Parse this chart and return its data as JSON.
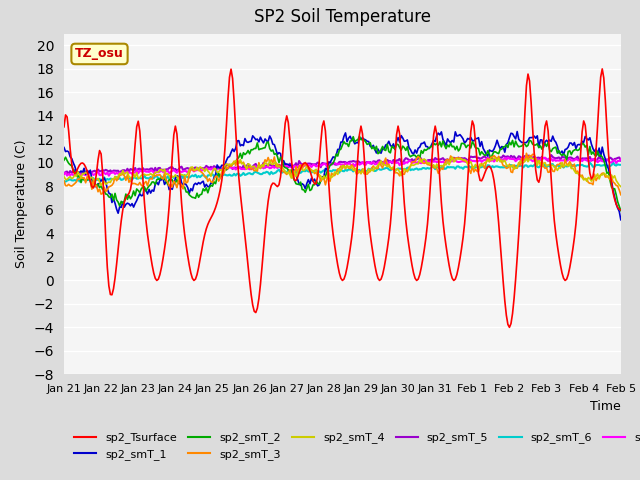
{
  "title": "SP2 Soil Temperature",
  "ylabel": "Soil Temperature (C)",
  "xlabel": "Time",
  "ylim": [
    -8,
    21
  ],
  "yticks": [
    -8,
    -6,
    -4,
    -2,
    0,
    2,
    4,
    6,
    8,
    10,
    12,
    14,
    16,
    18,
    20
  ],
  "tz_label": "TZ_osu",
  "tz_box_color": "#FFFFCC",
  "tz_text_color": "#CC0000",
  "bg_color": "#E8E8E8",
  "plot_bg_color": "#F0F0F0",
  "grid_color": "#FFFFFF",
  "series_colors": {
    "sp2_Tsurface": "#FF0000",
    "sp2_smT_1": "#0000CC",
    "sp2_smT_2": "#00AA00",
    "sp2_smT_3": "#FF8800",
    "sp2_smT_4": "#CCCC00",
    "sp2_smT_5": "#9900CC",
    "sp2_smT_6": "#00CCCC",
    "sp2_smT_7": "#FF00FF"
  },
  "x_tick_labels": [
    "Jan 21",
    "Jan 22",
    "Jan 23",
    "Jan 24",
    "Jan 25",
    "Jan 26",
    "Jan 27",
    "Jan 28",
    "Jan 29",
    "Jan 30",
    "Jan 31",
    "Feb 1",
    "Feb 2",
    "Feb 3",
    "Feb 4",
    "Feb 5"
  ],
  "n_points": 361
}
